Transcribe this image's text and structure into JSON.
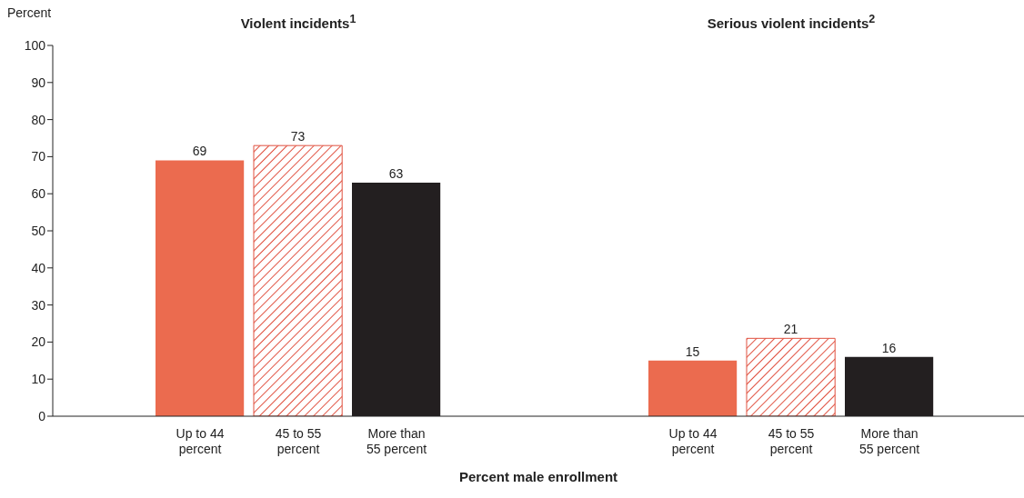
{
  "chart_data": [
    {
      "type": "bar",
      "title": "Violent incidents$^{1}$",
      "ylabel": "Percent",
      "xlabel": "Percent male enrollment",
      "categories": [
        "Up to 44 percent",
        "45 to 55 percent",
        "More than 55 percent"
      ],
      "values": [
        69,
        73,
        63
      ],
      "colors": [
        "#eb6b4f",
        "#e0503f",
        "#231f20"
      ],
      "ylim": [
        0,
        100
      ],
      "yticks": [
        0,
        10,
        20,
        30,
        40,
        50,
        60,
        70,
        80,
        90,
        100
      ],
      "data_labels": true
    },
    {
      "type": "bar",
      "title": "Serious violent incidents$^{2}$",
      "categories": [
        "Up to 44 percent",
        "45 to 55 percent",
        "More than 55 percent"
      ],
      "values": [
        15,
        21,
        16
      ],
      "colors": [
        "#eb6b4f",
        "#e0503f",
        "#231f20"
      ],
      "ylim": [
        0,
        100
      ],
      "yticks": [
        0,
        10,
        20,
        30,
        40,
        50,
        60,
        70,
        80,
        90,
        100
      ],
      "tick_labels": "x",
      "data_labels": true
    }
  ]
}
